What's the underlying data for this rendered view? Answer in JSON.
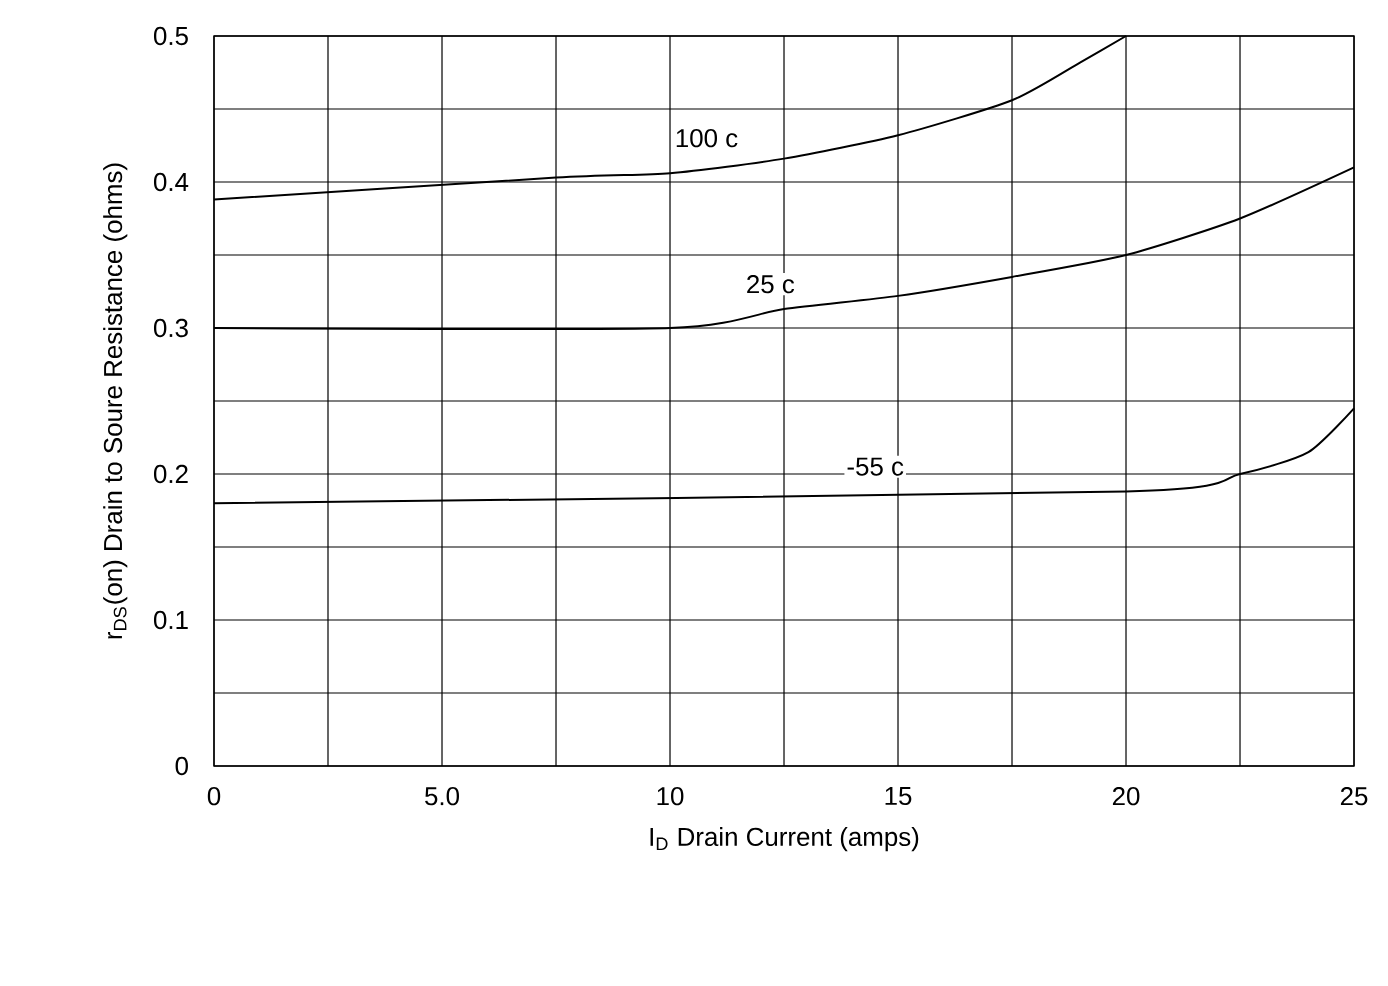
{
  "chart_data": {
    "type": "line",
    "xlabel": "I$_{D}$ Drain Current (amps)",
    "ylabel": "r$_{DS}$(on) Drain to Soure Resistance (ohms)",
    "xlim": [
      0,
      25
    ],
    "ylim": [
      0,
      0.5
    ],
    "xticks": [
      0,
      {
        "value": 2.5,
        "label": null
      },
      {
        "value": 5,
        "label": "5.0"
      },
      {
        "value": 7.5,
        "label": null
      },
      10,
      {
        "value": 12.5,
        "label": null
      },
      15,
      {
        "value": 17.5,
        "label": null
      },
      20,
      {
        "value": 22.5,
        "label": null
      },
      25
    ],
    "yticks": [
      0,
      {
        "value": 0.05,
        "label": null
      },
      0.1,
      {
        "value": 0.15,
        "label": null
      },
      0.2,
      {
        "value": 0.25,
        "label": null
      },
      0.3,
      {
        "value": 0.35,
        "label": null
      },
      0.4,
      {
        "value": 0.45,
        "label": null
      },
      0.5
    ],
    "grid": true,
    "marker": "none",
    "line_style": "solid",
    "series": [
      {
        "color": "#000000",
        "x": [
          0,
          7.5,
          10,
          12.5,
          15,
          17.5,
          19,
          20
        ],
        "values": [
          0.388,
          0.403,
          0.406,
          0.416,
          0.432,
          0.456,
          0.482,
          0.5
        ]
      },
      {
        "color": "#000000",
        "x": [
          0,
          10,
          12.5,
          15,
          17.5,
          20,
          22.5,
          25
        ],
        "values": [
          0.3,
          0.3,
          0.313,
          0.322,
          0.335,
          0.35,
          0.375,
          0.41
        ]
      },
      {
        "color": "#000000",
        "x": [
          0,
          20,
          22.5,
          24,
          25
        ],
        "values": [
          0.18,
          0.188,
          0.2,
          0.215,
          0.245
        ]
      }
    ],
    "annotations": [
      {
        "text": "100 c",
        "x": 10.8,
        "y": 0.43
      },
      {
        "text": "25 c",
        "x": 12.2,
        "y": 0.33
      },
      {
        "text": "-55 c",
        "x": 14.5,
        "y": 0.205
      }
    ]
  }
}
